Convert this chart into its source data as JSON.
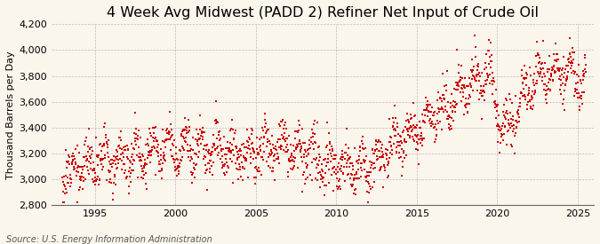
{
  "title": "4 Week Avg Midwest (PADD 2) Refiner Net Input of Crude Oil",
  "ylabel": "Thousand Barrels per Day",
  "source": "Source: U.S. Energy Information Administration",
  "ylim": [
    2800,
    4200
  ],
  "yticks": [
    2800,
    3000,
    3200,
    3400,
    3600,
    3800,
    4000,
    4200
  ],
  "xlim": [
    1992.3,
    2026.0
  ],
  "xticks": [
    1995,
    2000,
    2005,
    2010,
    2015,
    2020,
    2025
  ],
  "marker_color": "#cc0000",
  "background_color": "#faf6ec",
  "grid_color": "#bbbbbb",
  "title_fontsize": 11.5,
  "label_fontsize": 8,
  "tick_fontsize": 8,
  "source_fontsize": 7
}
